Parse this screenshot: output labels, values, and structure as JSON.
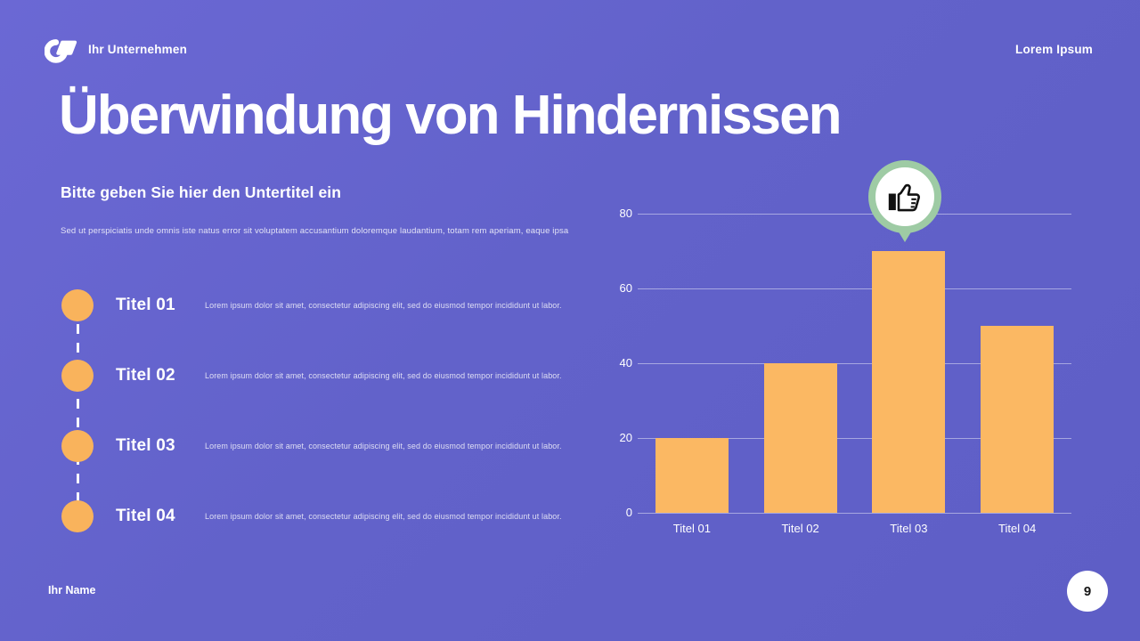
{
  "theme": {
    "background": "#6262CA",
    "bar_color": "#FBB863",
    "dot_color": "#F9B35C",
    "badge_ring_color": "#9ECBA4",
    "text_color": "#FFFFFF"
  },
  "header": {
    "company": "Ihr Unternehmen",
    "right_text": "Lorem Ipsum"
  },
  "main": {
    "title": "Überwindung von Hindernissen",
    "subtitle": "Bitte geben Sie hier den Untertitel ein",
    "intro": "Sed ut perspiciatis unde omnis iste natus error sit voluptatem accusantium doloremque laudantium, totam rem aperiam, eaque ipsa"
  },
  "timeline": {
    "items": [
      {
        "label": "Titel 01",
        "description": "Lorem ipsum dolor sit amet, consectetur adipiscing elit, sed do eiusmod tempor incididunt ut labor."
      },
      {
        "label": "Titel 02",
        "description": "Lorem ipsum dolor sit amet, consectetur adipiscing elit, sed do eiusmod tempor incididunt ut labor."
      },
      {
        "label": "Titel 03",
        "description": "Lorem ipsum dolor sit amet, consectetur adipiscing elit, sed do eiusmod tempor incididunt ut labor."
      },
      {
        "label": "Titel 04",
        "description": "Lorem ipsum dolor sit amet, consectetur adipiscing elit, sed do eiusmod tempor incididunt ut labor."
      }
    ]
  },
  "chart_data": {
    "type": "bar",
    "categories": [
      "Titel 01",
      "Titel 02",
      "Titel 03",
      "Titel 04"
    ],
    "values": [
      20,
      40,
      70,
      50
    ],
    "title": "",
    "xlabel": "",
    "ylabel": "",
    "ylim": [
      0,
      80
    ],
    "yticks": [
      0,
      20,
      40,
      60,
      80
    ],
    "grid": true,
    "legend": false,
    "bar_color": "#FBB863",
    "highlight": {
      "category": "Titel 03",
      "icon": "thumbs-up-badge"
    }
  },
  "footer": {
    "author": "Ihr Name",
    "page_number": "9"
  }
}
